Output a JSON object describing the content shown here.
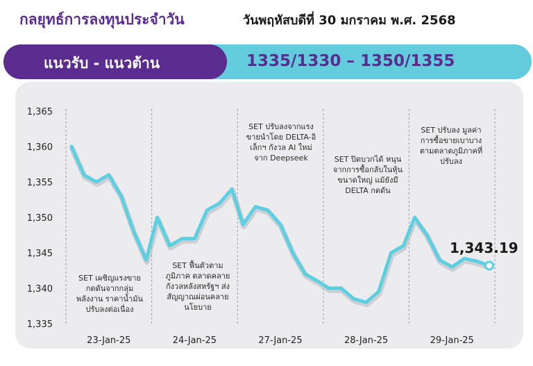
{
  "header": {
    "title": "กลยุทธ์การลงทุนประจำวัน",
    "date": "วันพฤหัสบดีที่ 30 มกราคม พ.ศ. 2568"
  },
  "banner": {
    "label": "แนวรับ - แนวต้าน",
    "value": "1335/1330 – 1350/1355"
  },
  "colors": {
    "brand_purple": "#5b2c8f",
    "accent_cyan": "#62cbdc",
    "line": "#5ccfe0",
    "panel": "#ececef"
  },
  "annotations": [
    "SET เผชิญแรงขาย\nกดดันจากกลุ่ม\nพลังงาน ราคาน้ำมัน\nปรับลงต่อเนื่อง",
    "SET ฟื้นตัวตาม\nภูมิภาค ตลาดคลาย\nกังวลหลังสหรัฐฯ ส่ง\nสัญญาณผ่อนคลาย\nนโยบาย",
    "SET ปรับลงจากแรง\nขายนำโดย DELTA-อิ\nเล็กฯ กังวล AI ใหม่\nจาก Deepseek",
    "SET ปิดบวกได้ หนุน\nจากการซื้อกลับในหุ้น\nขนาดใหญ่ แม้ยังมี\nDELTA กดดัน",
    "SET ปรับลง มูลค่า\nการซื้อขายเบาบาง\nตามตลาดภูมิภาคที่\nปรับลง"
  ],
  "last_value_label": "1,343.19",
  "chart_data": {
    "type": "line",
    "title": "",
    "xlabel": "",
    "ylabel": "",
    "ylim": [
      1335,
      1365
    ],
    "yticks": [
      1335,
      1340,
      1345,
      1350,
      1355,
      1360,
      1365
    ],
    "ytick_labels": [
      "1,335",
      "1,340",
      "1,345",
      "1,350",
      "1,355",
      "1,360",
      "1,365"
    ],
    "categories": [
      "23-Jan-25",
      "24-Jan-25",
      "27-Jan-25",
      "28-Jan-25",
      "29-Jan-25"
    ],
    "grid": "vertical dashed separators between days",
    "series": [
      {
        "values": [
          [
            1360,
            1356,
            1355,
            1356,
            1353,
            1348,
            1344
          ],
          [
            1350,
            1346,
            1347,
            1347,
            1351,
            1352,
            1354
          ],
          [
            1349,
            1351.5,
            1351,
            1349,
            1345,
            1342,
            1341
          ],
          [
            1340,
            1340,
            1338.5,
            1338,
            1339.5,
            1345,
            1346
          ],
          [
            1350,
            1347.5,
            1344,
            1343,
            1344.2,
            1343.8,
            1343.19
          ]
        ]
      }
    ],
    "last_value": 1343.19
  }
}
